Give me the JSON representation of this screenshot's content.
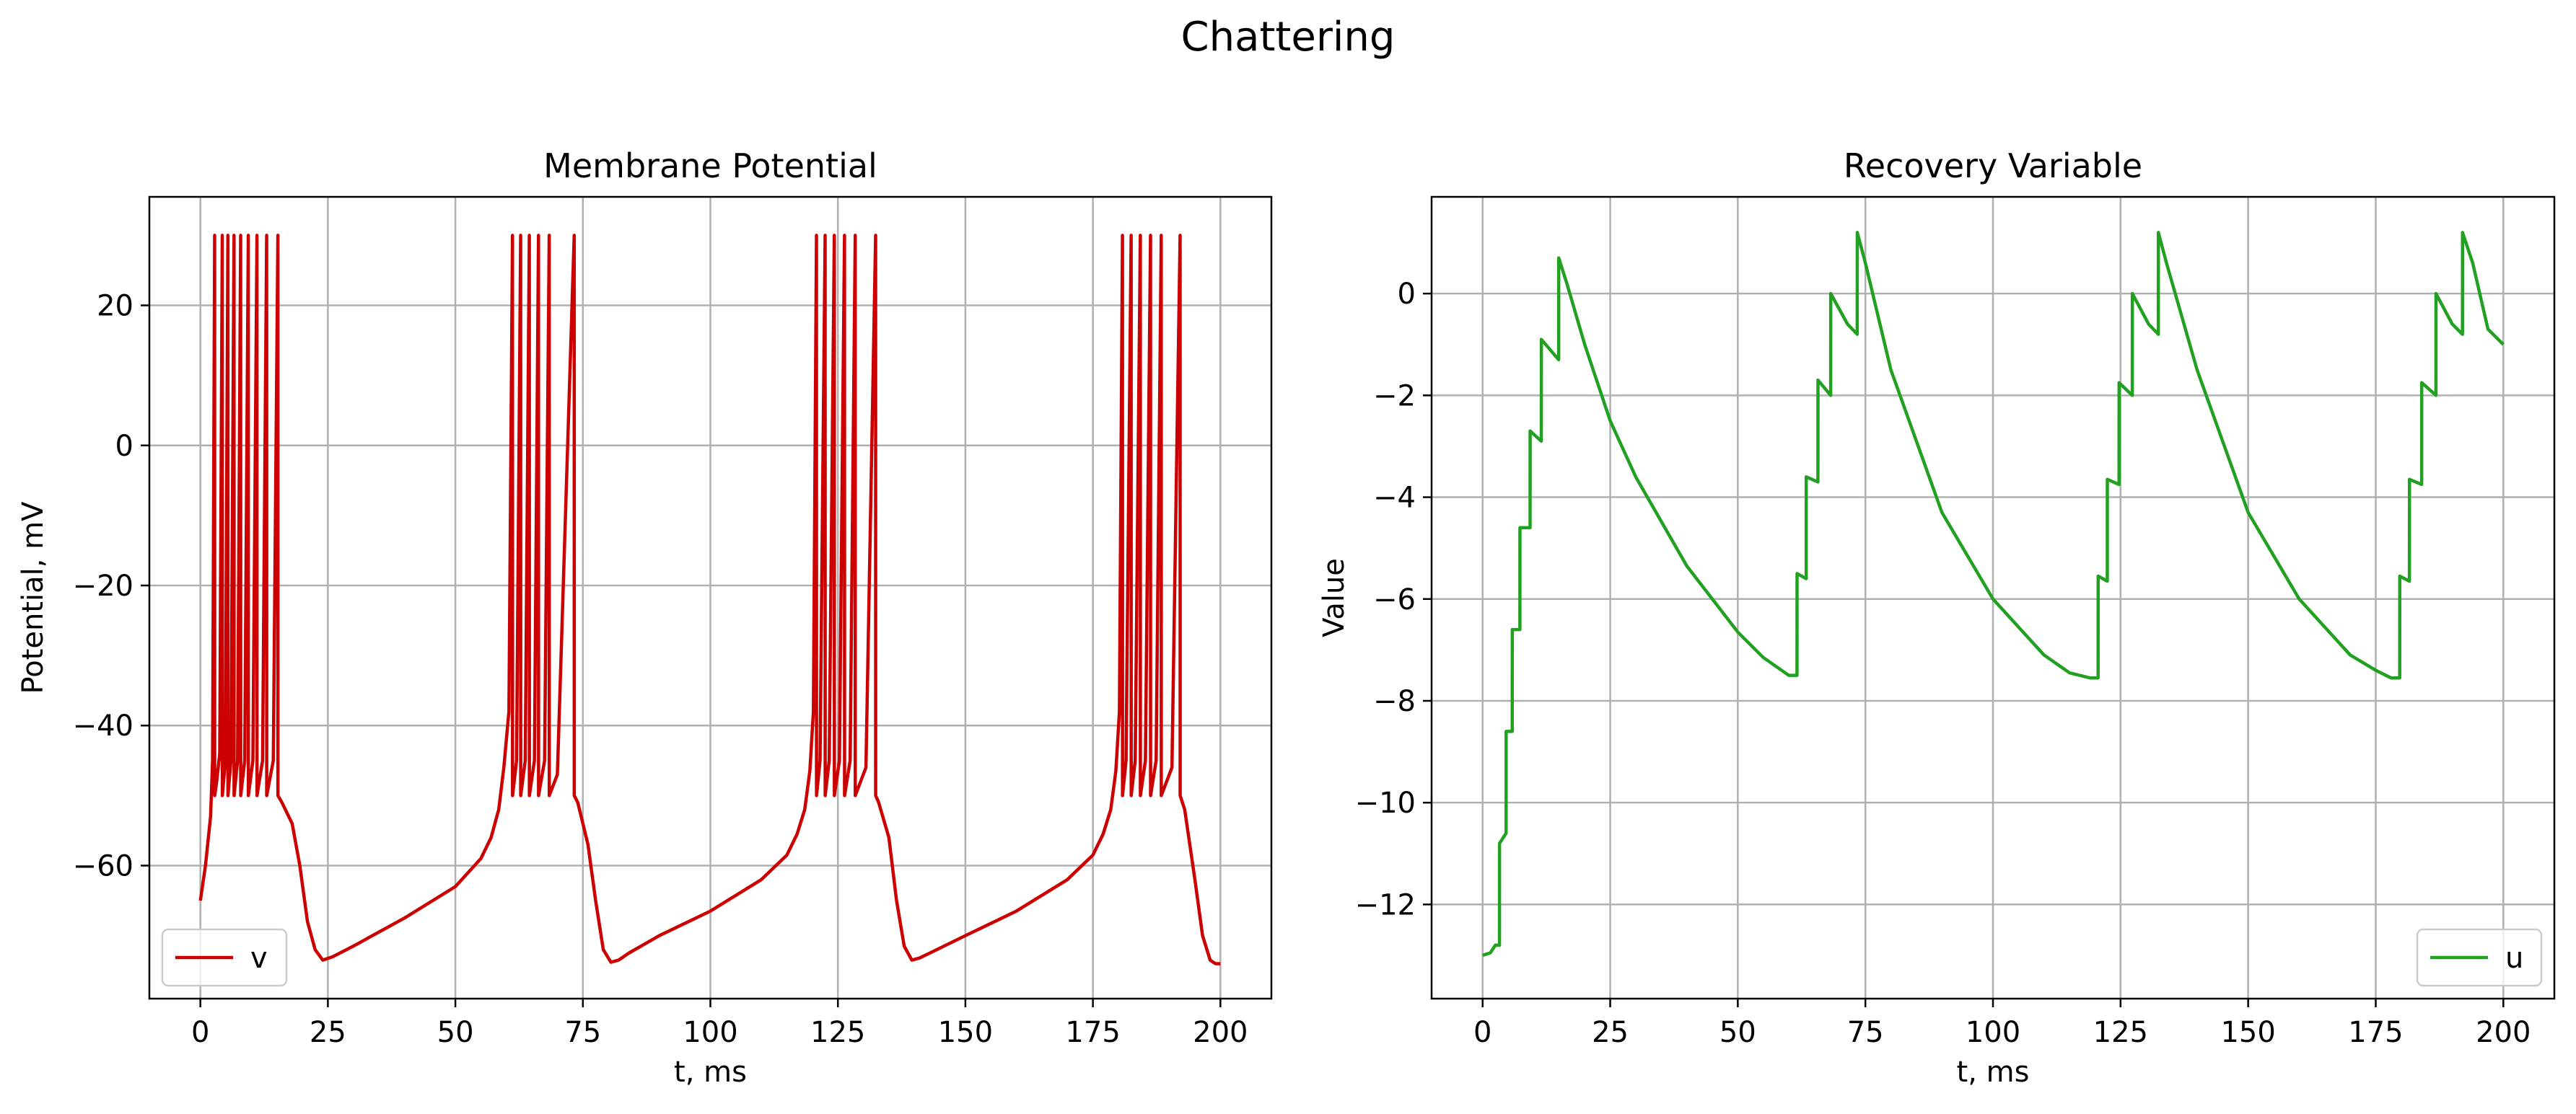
{
  "figure": {
    "suptitle": "Chattering"
  },
  "chart_data": [
    {
      "type": "line",
      "title": "Membrane Potential",
      "xlabel": "t, ms",
      "ylabel": "Potential, mV",
      "xlim": [
        -10,
        210
      ],
      "ylim": [
        -79,
        35.5
      ],
      "xticks": [
        0,
        25,
        50,
        75,
        100,
        125,
        150,
        175,
        200
      ],
      "yticks": [
        -60,
        -40,
        -20,
        0,
        20
      ],
      "grid": true,
      "legend": "lower left",
      "series": [
        {
          "name": "v",
          "color": "#cc0000",
          "x": [
            0.0,
            1.0,
            2.0,
            2.4,
            2.8,
            2.81,
            3.2,
            3.8,
            4.3,
            4.31,
            4.9,
            5.4,
            5.41,
            6.0,
            6.6,
            6.61,
            7.3,
            7.9,
            7.91,
            8.7,
            9.4,
            9.41,
            10.3,
            11.1,
            11.11,
            12.2,
            13.0,
            13.01,
            14.3,
            15.2,
            15.21,
            16.0,
            18.0,
            19.5,
            21.0,
            22.5,
            24.0,
            26.0,
            30.0,
            40.0,
            50.0,
            55.0,
            57.0,
            58.5,
            59.5,
            60.5,
            61.2,
            61.21,
            62.0,
            62.8,
            62.81,
            63.7,
            64.5,
            64.51,
            65.5,
            66.3,
            66.31,
            67.5,
            68.4,
            68.41,
            70.0,
            73.3,
            73.31,
            74.0,
            76.0,
            77.5,
            79.0,
            80.5,
            82.0,
            84.0,
            90.0,
            100.0,
            110.0,
            115.0,
            117.0,
            118.5,
            119.5,
            120.2,
            120.8,
            120.81,
            121.5,
            122.5,
            122.51,
            123.3,
            124.3,
            124.31,
            125.3,
            126.3,
            126.31,
            127.4,
            128.4,
            128.41,
            130.5,
            132.4,
            132.41,
            133.0,
            135.0,
            136.5,
            138.0,
            139.5,
            141.0,
            143.0,
            150.0,
            160.0,
            170.0,
            175.0,
            177.0,
            178.5,
            179.5,
            180.2,
            180.8,
            180.81,
            181.5,
            182.5,
            182.51,
            183.3,
            184.3,
            184.31,
            185.3,
            186.3,
            186.31,
            187.4,
            188.4,
            188.41,
            190.5,
            192.1,
            192.11,
            193.0,
            195.0,
            196.5,
            198.0,
            199.0,
            200.0
          ],
          "y": [
            -65,
            -60,
            -53,
            -45,
            30,
            -50,
            -48,
            -44,
            30,
            -50,
            -45,
            30,
            -50,
            -45,
            30,
            -50,
            -45,
            30,
            -50,
            -45,
            30,
            -50,
            -45,
            30,
            -50,
            -45,
            30,
            -50,
            -45,
            30,
            -50,
            -51,
            -54,
            -60,
            -68,
            -72,
            -73.5,
            -73,
            -71.5,
            -67.5,
            -63,
            -59,
            -56,
            -52,
            -46,
            -38,
            30,
            -50,
            -45,
            30,
            -50,
            -45,
            30,
            -50,
            -45,
            30,
            -50,
            -45,
            30,
            -50,
            -47,
            30,
            -50,
            -51,
            -57,
            -65,
            -72,
            -73.8,
            -73.5,
            -72.5,
            -70,
            -66.5,
            -62,
            -58.5,
            -55.5,
            -52,
            -46.5,
            -38,
            30,
            -50,
            -45,
            30,
            -50,
            -45,
            30,
            -50,
            -45,
            30,
            -50,
            -45,
            30,
            -50,
            -46,
            30,
            -50,
            -51,
            -56,
            -65,
            -71.5,
            -73.5,
            -73.2,
            -72.5,
            -70,
            -66.5,
            -62,
            -58.5,
            -55.5,
            -52,
            -46.5,
            -38,
            30,
            -50,
            -45,
            30,
            -50,
            -45,
            30,
            -50,
            -45,
            30,
            -50,
            -45,
            30,
            -50,
            -46,
            30,
            -50,
            -52,
            -62,
            -70,
            -73.5,
            -74,
            -74
          ]
        }
      ]
    },
    {
      "type": "line",
      "title": "Recovery Variable",
      "xlabel": "t, ms",
      "ylabel": "Value",
      "xlim": [
        -10,
        210
      ],
      "ylim": [
        -13.85,
        1.9
      ],
      "xticks": [
        0,
        25,
        50,
        75,
        100,
        125,
        150,
        175,
        200
      ],
      "yticks": [
        -12,
        -10,
        -8,
        -6,
        -4,
        -2,
        0
      ],
      "grid": true,
      "legend": "lower right",
      "series": [
        {
          "name": "u",
          "color": "#22a022",
          "x": [
            0.0,
            1.5,
            2.5,
            3.3,
            3.31,
            4.6,
            4.61,
            5.8,
            5.81,
            7.3,
            7.31,
            9.3,
            9.31,
            11.5,
            11.51,
            14.9,
            14.91,
            16.5,
            20.0,
            25.0,
            30.0,
            40.0,
            50.0,
            55.0,
            60.0,
            61.6,
            61.61,
            63.4,
            63.41,
            65.7,
            65.71,
            68.2,
            68.21,
            71.5,
            73.4,
            73.41,
            75.0,
            80.0,
            90.0,
            100.0,
            110.0,
            115.0,
            119.0,
            120.6,
            120.61,
            122.4,
            122.41,
            124.7,
            124.71,
            127.3,
            127.31,
            130.5,
            132.4,
            132.41,
            134.0,
            140.0,
            150.0,
            160.0,
            170.0,
            175.0,
            178.0,
            179.7,
            179.71,
            181.6,
            181.61,
            184.0,
            184.01,
            186.8,
            186.81,
            190.0,
            192.0,
            192.01,
            194.0,
            197.0,
            200.0
          ],
          "y": [
            -13.0,
            -12.95,
            -12.8,
            -12.8,
            -10.8,
            -10.6,
            -8.6,
            -8.6,
            -6.6,
            -6.6,
            -4.6,
            -4.6,
            -2.7,
            -2.9,
            -0.9,
            -1.3,
            0.7,
            0.2,
            -1.0,
            -2.5,
            -3.6,
            -5.35,
            -6.65,
            -7.15,
            -7.5,
            -7.5,
            -5.5,
            -5.6,
            -3.6,
            -3.7,
            -1.7,
            -2.0,
            0.0,
            -0.6,
            -0.8,
            1.2,
            0.6,
            -1.5,
            -4.3,
            -6.0,
            -7.1,
            -7.45,
            -7.55,
            -7.55,
            -5.55,
            -5.65,
            -3.65,
            -3.75,
            -1.75,
            -2.0,
            0.0,
            -0.6,
            -0.8,
            1.2,
            0.6,
            -1.5,
            -4.3,
            -6.0,
            -7.1,
            -7.4,
            -7.55,
            -7.55,
            -5.55,
            -5.65,
            -3.65,
            -3.75,
            -1.75,
            -2.0,
            0.0,
            -0.6,
            -0.8,
            1.2,
            0.6,
            -0.7,
            -1.0
          ]
        }
      ]
    }
  ]
}
